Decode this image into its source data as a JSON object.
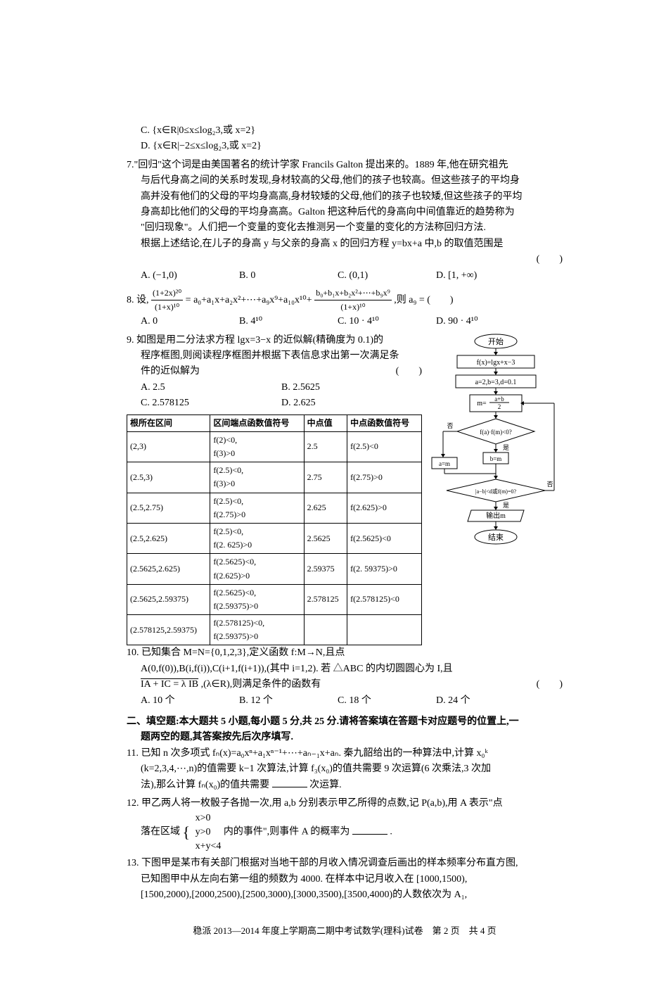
{
  "q6": {
    "optC": "C. {x∈R|0≤x≤log₂3,或 x=2}",
    "optD": "D. {x∈R|−2≤x≤log₂3,或 x=2}"
  },
  "q7": {
    "text1": "7.\"回归\"这个词是由美国著名的统计学家 Francils Galton 提出来的。1889 年,他在研究祖先",
    "text2": "与后代身高之间的关系时发现,身材较高的父母,他们的孩子也较高。但这些孩子的平均身",
    "text3": "高并没有他们的父母的平均身高高,身材较矮的父母,他们的孩子也较矮,但这些孩子的平均",
    "text4": "身高却比他们的父母的平均身高高。Galton 把这种后代的身高向中间值靠近的趋势称为",
    "text5": "\"回归现象\"。人们把一个变量的变化去推测另一个变量的变化的方法称回归方法.",
    "text6": "根据上述结论,在儿子的身高 y 与父亲的身高 x 的回归方程 y=bx+a 中,b 的取值范围是",
    "paren": "(　　)",
    "optA": "A. (−1,0)",
    "optB": "B. 0",
    "optC": "C. (0,1)",
    "optD": "D. [1, +∞)"
  },
  "q8": {
    "text_pre": "8. 设,",
    "frac_num": "(1+2x)²⁰",
    "frac_den": "(1+x)¹⁰",
    "text_mid": " = a₀+a₁x+a₂x²+⋯+a₉x⁹+a₁₀x¹⁰+",
    "frac2_num": "b₀+b₁x+b₂x²+⋯+b₉x⁹",
    "frac2_den": "(1+x)¹⁰",
    "text_end": ",则 a₉ = (　　)",
    "optA": "A. 0",
    "optB": "B. 4¹⁰",
    "optC": "C. 10 · 4¹⁰",
    "optD": "D. 90 · 4¹⁰"
  },
  "q9": {
    "text1": "9. 如图是用二分法求方程 lgx=3−x 的近似解(精确度为 0.1)的",
    "text2": "程序框图,则阅读程序框图并根据下表信息求出第一次满足条",
    "text3": "件的近似解为",
    "paren": "(　　)",
    "optA": "A. 2.5",
    "optB": "B. 2.5625",
    "optC": "C. 2.578125",
    "optD": "D. 2.625",
    "table": {
      "headers": [
        "根所在区间",
        "区间端点函数值符号",
        "中点值",
        "中点函数值符号"
      ],
      "rows": [
        [
          "(2,3)",
          "f(2)<0,\nf(3)>0",
          "2.5",
          "f(2.5)<0"
        ],
        [
          "(2.5,3)",
          "f(2.5)<0,\nf(3)>0",
          "2.75",
          "f(2.75)>0"
        ],
        [
          "(2.5,2.75)",
          "f(2.5)<0,\nf(2.75)>0",
          "2.625",
          "f(2.625)>0"
        ],
        [
          "(2.5,2.625)",
          "f(2.5)<0,\nf(2. 625)>0",
          "2.5625",
          "f(2.5625)<0"
        ],
        [
          "(2.5625,2.625)",
          "f(2.5625)<0,\nf(2.625)>0",
          "2.59375",
          "f(2. 59375)>0"
        ],
        [
          "(2.5625,2.59375)",
          "f(2.5625)<0,\nf(2.59375)>0",
          "2.578125",
          "f(2.578125)<0"
        ],
        [
          "(2.578125,2.59375)",
          "f(2.578125)<0,\nf(2.59375)>0",
          "",
          ""
        ]
      ]
    },
    "flow": {
      "start": "开始",
      "box1": "f(x)=lgx+x−3",
      "box2": "a=2,b=3,d=0.1",
      "box3_num": "a+b",
      "box3_den": "2",
      "box3_pre": "m=",
      "d1": "f(a)·f(m)<0?",
      "d1_no": "否",
      "d1_yes": "是",
      "box_am": "a=m",
      "box_bm": "b=m",
      "d2": "|a−b|<d或f(m)=0?",
      "d2_no": "否",
      "d2_yes": "是",
      "box_out": "输出m",
      "end": "结束"
    }
  },
  "q10": {
    "text1": "10. 已知集合 M=N={0,1,2,3},定义函数 f:M→N,且点",
    "text2": "A(0,f(0)),B(i,f(i)),C(i+1,f(i+1)),(其中 i=1,2). 若 △ABC 的内切圆圆心为 I,且",
    "text3_pre": "",
    "text3_vec": "IA + IC = λ IB",
    "text3_post": ",(λ∈R),则满足条件的函数有",
    "paren": "(　　)",
    "optA": "A. 10 个",
    "optB": "B. 12 个",
    "optC": "C. 18 个",
    "optD": "D. 24 个"
  },
  "section2": {
    "title": "二、填空题:本大题共 5 小题,每小题 5 分,共 25 分.请将答案填在答题卡对应题号的位置上,一",
    "title2": "题两空的题,其答案按先后次序填写."
  },
  "q11": {
    "text1": "11. 已知 n 次多项式 fₙ(x)=a₀xⁿ+a₁xⁿ⁻¹+⋯+aₙ₋₁x+aₙ. 秦九韶给出的一种算法中,计算 x₀ᵏ",
    "text2": "(k=2,3,4,⋯,n)的值需要 k−1 次算法,计算 f₃(x₀)的值共需要 9 次运算(6 次乘法,3 次加",
    "text3_pre": "法),那么计算 fₙ(x₀)的值共需要",
    "text3_post": "次运算."
  },
  "q12": {
    "text1": "12. 甲乙两人将一枚骰子各抛一次,用 a,b 分别表示甲乙所得的点数,记 P(a,b),用 A 表示\"点",
    "text2_pre": "落在区域",
    "case1": "x>0",
    "case2": "y>0",
    "case3": "x+y<4",
    "text2_mid": " 内的事件\",则事件 A 的概率为",
    "text2_post": "."
  },
  "q13": {
    "text1": "13. 下图甲是某市有关部门根据对当地干部的月收入情况调查后画出的样本频率分布直方图,",
    "text2": "已知图甲中从左向右第一组的频数为 4000. 在样本中记月收入在 [1000,1500),",
    "text3": "[1500,2000),[2000,2500),[2500,3000),[3000,3500),[3500,4000)的人数依次为 A₁,"
  },
  "footer": "稳派 2013—2014 年度上学期高二期中考试数学(理科)试卷　第 2 页　共 4 页"
}
